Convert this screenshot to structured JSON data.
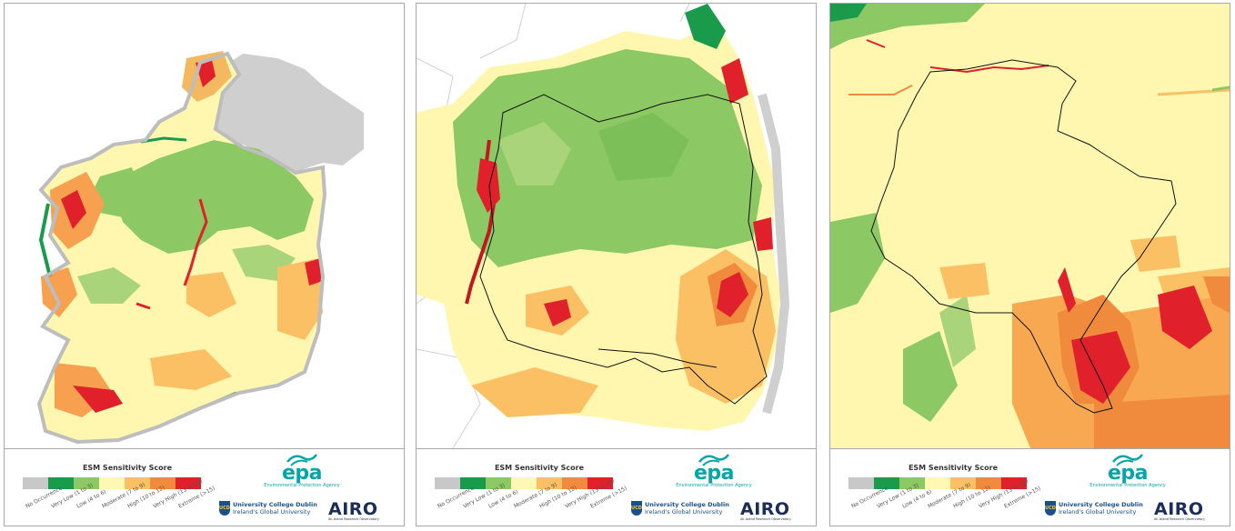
{
  "legend": {
    "title": "ESM Sensitivity Score",
    "classes": [
      {
        "label": "No Occurrence",
        "color": "#c8c8c8"
      },
      {
        "label": "Very Low (1 to 3)",
        "color": "#1a9a4b"
      },
      {
        "label": "Low (4 to 6)",
        "color": "#8cc864"
      },
      {
        "label": "Moderate (7 to 9)",
        "color": "#fff8b4"
      },
      {
        "label": "High (10 to 12)",
        "color": "#fcc064"
      },
      {
        "label": "Very High (13 to 15)",
        "color": "#f08a3c"
      },
      {
        "label": "Extreme (>15)",
        "color": "#e0202a"
      }
    ]
  },
  "logos": {
    "epa_word": "epa",
    "epa_sub": "Environmental Protection Agency",
    "ucd_line1": "University College Dublin",
    "ucd_line2": "Ireland's Global University",
    "ucd_crest": "UCD",
    "airo_word": "AIRO",
    "airo_sub": "All-Island Research Observatory"
  },
  "panels": [
    {
      "id": "national",
      "view": "Ireland"
    },
    {
      "id": "regional",
      "view": "Region"
    },
    {
      "id": "local",
      "view": "Local"
    }
  ]
}
